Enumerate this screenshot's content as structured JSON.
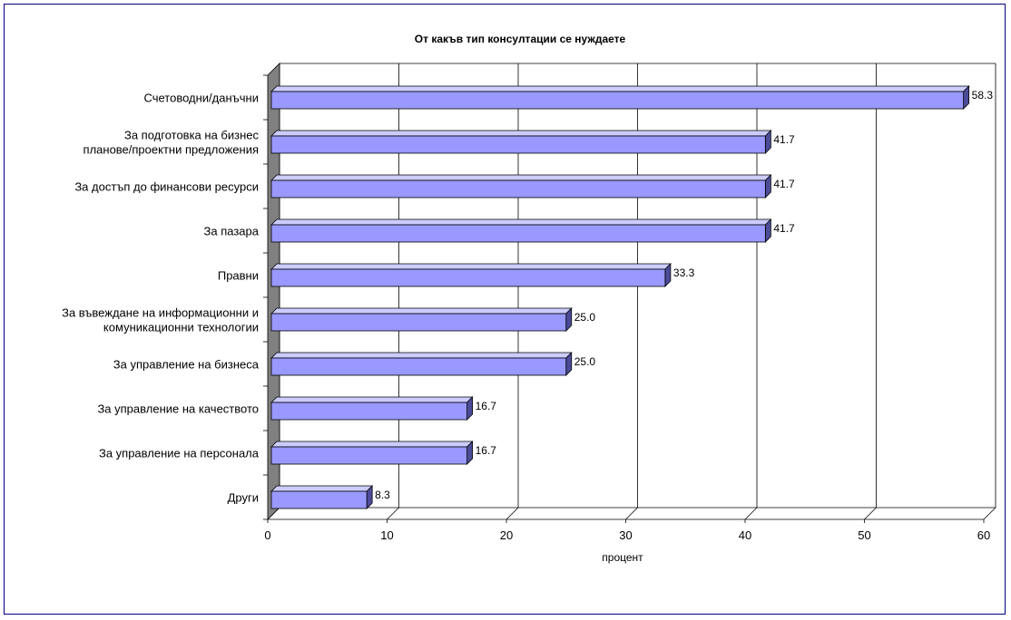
{
  "chart_data": {
    "type": "bar",
    "orientation": "horizontal",
    "title": "От какъв тип консултации се нуждаете",
    "xlabel": "процент",
    "categories": [
      [
        "Счетоводни/данъчни"
      ],
      [
        "За подготовка на бизнес",
        "планове/проектни предложения"
      ],
      [
        "За достъп до финансови ресурси"
      ],
      [
        "За пазара"
      ],
      [
        "Правни"
      ],
      [
        "За въвеждане на информационни и",
        "комуникационни технологии"
      ],
      [
        "За управление на бизнеса"
      ],
      [
        "За управление на качеството"
      ],
      [
        "За управление на персонала"
      ],
      [
        "Други"
      ]
    ],
    "values": [
      58.3,
      41.7,
      41.7,
      41.7,
      33.3,
      25.0,
      25.0,
      16.7,
      16.7,
      8.3
    ],
    "data_labels": [
      "58.3",
      "41.7",
      "41.7",
      "41.7",
      "33.3",
      "25.0",
      "25.0",
      "16.7",
      "16.7",
      "8.3"
    ],
    "xlim": [
      0,
      60
    ],
    "xticks": [
      "0",
      "10",
      "20",
      "30",
      "40",
      "50",
      "60"
    ],
    "grid": true,
    "legend": "none",
    "colors": {
      "bar_front": "#9999ff",
      "bar_top": "#ccccff",
      "bar_side": "#4c4c99",
      "wall": "#808080",
      "frame": "#000080"
    }
  }
}
